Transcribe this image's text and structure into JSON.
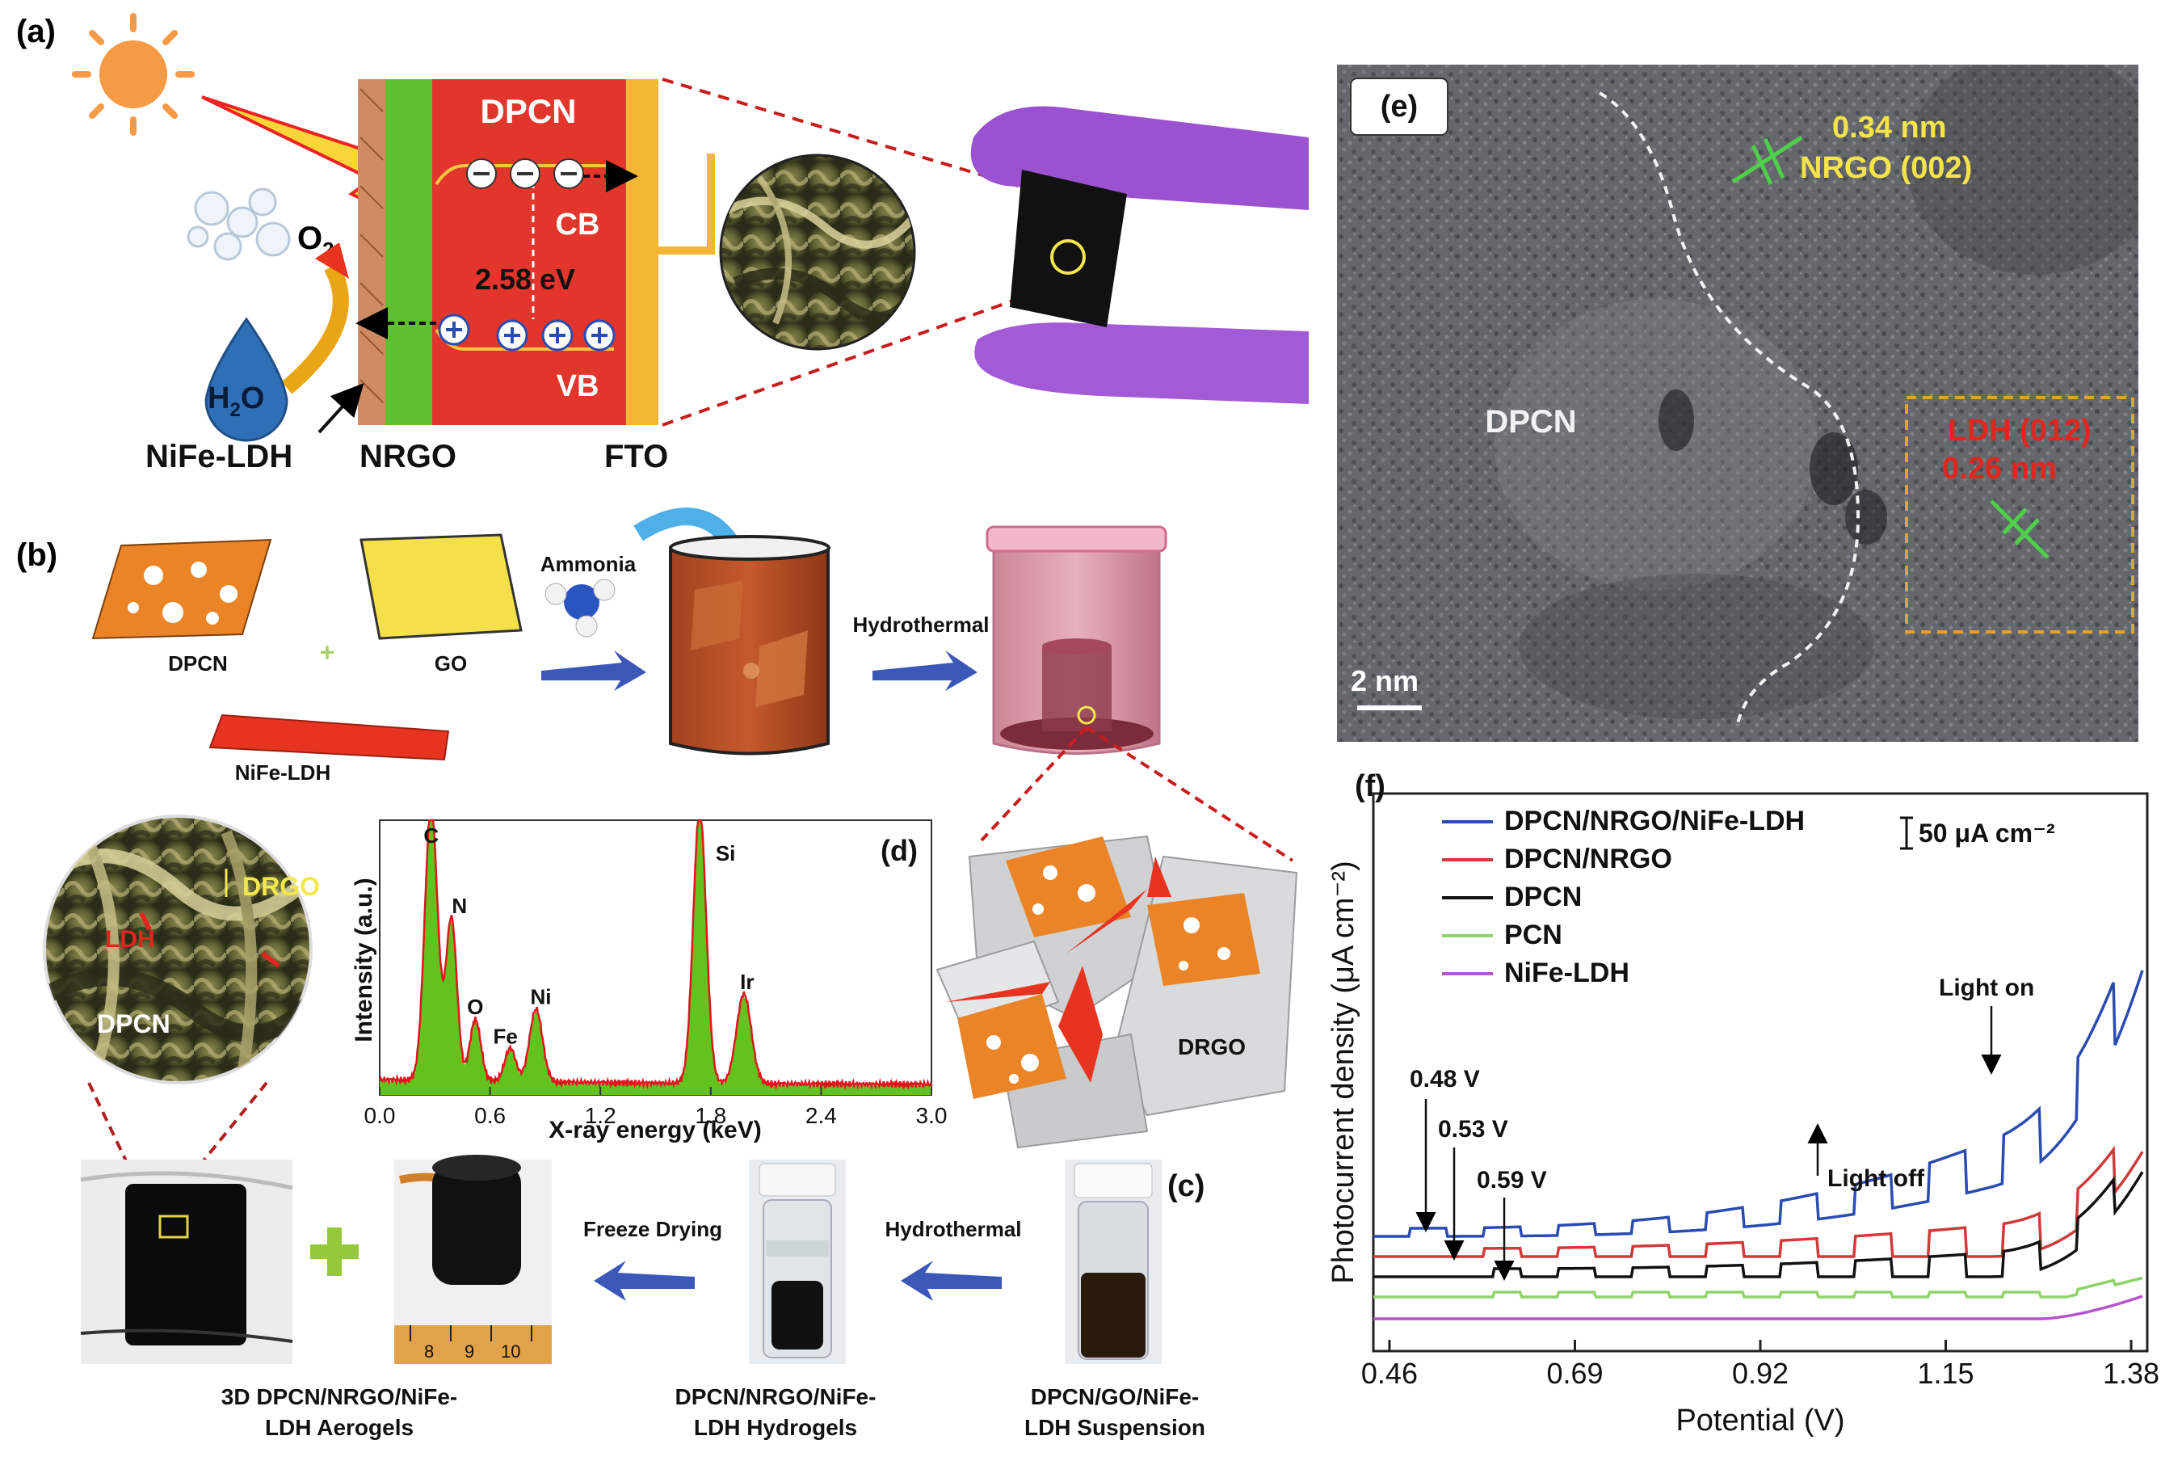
{
  "panel_a": {
    "letter": "(a)",
    "layers": {
      "dpcn": "DPCN",
      "cb": "CB",
      "vb": "VB",
      "bandgap": "2.58 eV"
    },
    "labels": {
      "o2": "O",
      "o2_sub": "2",
      "h2o": "H",
      "h2o_sub": "2",
      "h2o_tail": "O",
      "nife": "NiFe-LDH",
      "nrgo": "NRGO",
      "fto": "FTO"
    },
    "electron_symbol": "⊖",
    "hole_symbol": "⊕"
  },
  "panel_b": {
    "letter": "(b)",
    "labels": {
      "dpcn": "DPCN",
      "go": "GO",
      "nife": "NiFe-LDH",
      "plus": "+",
      "ammonia": "Ammonia",
      "hydrothermal": "Hydrothermal"
    }
  },
  "sem_inset": {
    "drgo": "DRGO",
    "ldh": "LDH",
    "dpcn": "DPCN"
  },
  "panel_c": {
    "letter": "(c)",
    "freeze": "Freeze Drying",
    "hydrothermal": "Hydrothermal",
    "plus": "+",
    "ruler": [
      "8",
      "9",
      "10"
    ],
    "caption1_l1": "3D DPCN/NRGO/NiFe-",
    "caption1_l2": "LDH Aerogels",
    "caption2_l1": "DPCN/NRGO/NiFe-",
    "caption2_l2": "LDH Hydrogels",
    "caption3_l1": "DPCN/GO/NiFe-",
    "caption3_l2": "LDH Suspension"
  },
  "panel_d_scheme": {
    "drgo": "DRGO"
  },
  "panel_e": {
    "letter": "(e)",
    "dpcn": "DPCN",
    "nrgo_spacing": "0.34 nm",
    "nrgo_plane": "NRGO (002)",
    "ldh_plane": "LDH (012)",
    "ldh_spacing": "0.26 nm",
    "scale": "2 nm"
  },
  "chart_data": [
    {
      "type": "area",
      "letter": "(d)",
      "xlabel": "X-ray energy (keV)",
      "ylabel": "Intensity (a.u.)",
      "xlim": [
        0,
        3.0
      ],
      "xticks": [
        "0.0",
        "0.6",
        "1.2",
        "1.8",
        "2.4",
        "3.0"
      ],
      "peaks": [
        {
          "label": "C",
          "x": 0.28
        },
        {
          "label": "N",
          "x": 0.39
        },
        {
          "label": "O",
          "x": 0.52
        },
        {
          "label": "Fe",
          "x": 0.71
        },
        {
          "label": "Ni",
          "x": 0.85
        },
        {
          "label": "Si",
          "x": 1.74
        },
        {
          "label": "Ir",
          "x": 1.98
        }
      ],
      "colors": {
        "fill": "#63c21e",
        "line": "#e0161e"
      }
    },
    {
      "type": "line",
      "letter": "(f)",
      "xlabel": "Potential (V)",
      "ylabel": "Photocurrent density (μA cm⁻²)",
      "scale_bar": "50 μA cm⁻²",
      "xlim": [
        0.44,
        1.4
      ],
      "xticks": [
        "0.46",
        "0.69",
        "0.92",
        "1.15",
        "1.38"
      ],
      "series": [
        {
          "name": "DPCN/NRGO/NiFe-LDH",
          "color": "#2a4bb0",
          "dark": 0.04,
          "onset": 0.48,
          "jump": 0.2,
          "growth": 0.5
        },
        {
          "name": "DPCN/NRGO",
          "color": "#d13a3a",
          "dark": 0.09,
          "onset": 0.53,
          "jump": 0.11,
          "growth": 0.7
        },
        {
          "name": "DPCN",
          "color": "#111111",
          "dark": 0.14,
          "onset": 0.59,
          "jump": 0.08,
          "growth": 0.7
        },
        {
          "name": "PCN",
          "color": "#8fd36a",
          "dark": 0.2,
          "onset": 0.59,
          "jump": 0.02,
          "growth": 0.1
        },
        {
          "name": "NiFe-LDH",
          "color": "#b455cc",
          "dark": 0.26,
          "onset": 0.59,
          "jump": 0.005,
          "growth": 0.1
        }
      ],
      "annotations": [
        {
          "text": "0.48 V",
          "x": 0.48
        },
        {
          "text": "0.53 V",
          "x": 0.53
        },
        {
          "text": "0.59 V",
          "x": 0.59
        },
        {
          "text": "Light on",
          "x": 1.24
        },
        {
          "text": "Light off",
          "x": 1.0
        }
      ]
    }
  ]
}
